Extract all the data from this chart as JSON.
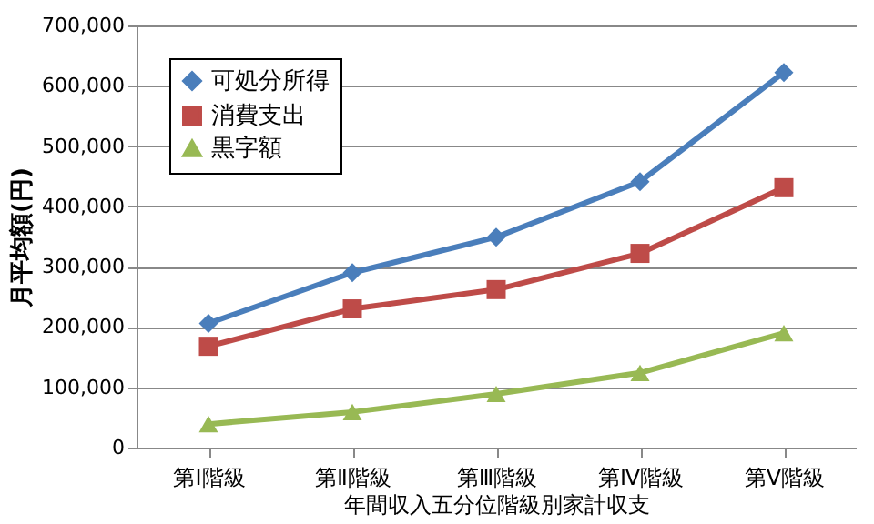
{
  "chart_data": {
    "type": "line",
    "xlabel": "年間収入五分位階級別家計収支",
    "ylabel": "月平均額(円)",
    "categories": [
      "第Ⅰ階級",
      "第Ⅱ階級",
      "第Ⅲ階級",
      "第Ⅳ階級",
      "第Ⅴ階級"
    ],
    "series": [
      {
        "name": "可処分所得",
        "color": "#4a7ebb",
        "marker": "diamond",
        "values": [
          206000,
          290000,
          349000,
          441000,
          622000
        ]
      },
      {
        "name": "消費支出",
        "color": "#be4b48",
        "marker": "square",
        "values": [
          168000,
          230000,
          262000,
          322000,
          431000
        ]
      },
      {
        "name": "黒字額",
        "color": "#98b954",
        "marker": "triangle",
        "values": [
          39000,
          59000,
          89000,
          124000,
          190000
        ]
      }
    ],
    "ylim": [
      0,
      700000
    ],
    "yticks": [
      0,
      {
        "value": 100000,
        "label": "100,000"
      },
      {
        "value": 200000,
        "label": "200,000"
      },
      {
        "value": 300000,
        "label": "300,000"
      },
      {
        "value": 400000,
        "label": "400,000"
      },
      {
        "value": 500000,
        "label": "500,000"
      },
      {
        "value": 600000,
        "label": "600,000"
      },
      {
        "value": 700000,
        "label": "700,000"
      }
    ],
    "grid": "y",
    "legend": "top left",
    "line_style": "solid"
  }
}
